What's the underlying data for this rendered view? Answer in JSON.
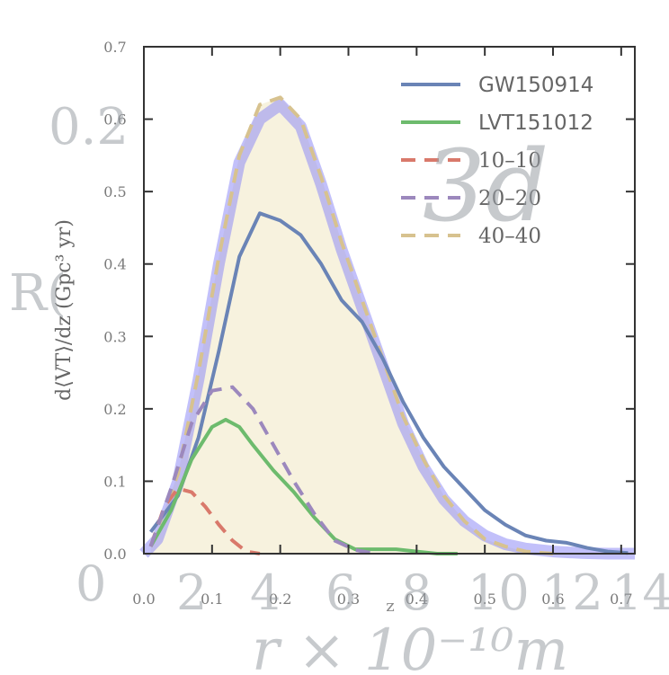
{
  "chart_data": {
    "type": "line",
    "ylabel": "d⟨VT⟩/dz (Gpc³ yr)",
    "xlabel": "z",
    "xlim": [
      0.0,
      0.72
    ],
    "ylim": [
      0.0,
      0.7
    ],
    "xticks": [
      "0.0",
      "0.1",
      "0.2",
      "0.3",
      "0.4",
      "0.5",
      "0.6",
      "0.7"
    ],
    "yticks": [
      "0.0",
      "0.1",
      "0.2",
      "0.3",
      "0.4",
      "0.5",
      "0.6",
      "0.7"
    ],
    "grid": false,
    "legend_position": "top-right",
    "background_fill": "#f7f2de",
    "series": [
      {
        "name": "GW150914",
        "style": "solid",
        "color": "#6a84b6",
        "x": [
          0.01,
          0.05,
          0.08,
          0.11,
          0.14,
          0.17,
          0.2,
          0.23,
          0.26,
          0.29,
          0.32,
          0.35,
          0.38,
          0.41,
          0.44,
          0.47,
          0.5,
          0.53,
          0.56,
          0.59,
          0.62,
          0.65,
          0.68,
          0.71
        ],
        "y": [
          0.03,
          0.08,
          0.16,
          0.28,
          0.41,
          0.47,
          0.46,
          0.44,
          0.4,
          0.35,
          0.32,
          0.27,
          0.21,
          0.16,
          0.12,
          0.09,
          0.06,
          0.04,
          0.025,
          0.018,
          0.015,
          0.008,
          0.003,
          0.001
        ]
      },
      {
        "name": "LVT151012",
        "style": "solid",
        "color": "#6dbb6d",
        "x": [
          0.01,
          0.04,
          0.07,
          0.1,
          0.12,
          0.14,
          0.16,
          0.19,
          0.22,
          0.25,
          0.28,
          0.31,
          0.34,
          0.37,
          0.4,
          0.43,
          0.46
        ],
        "y": [
          0.01,
          0.06,
          0.13,
          0.175,
          0.185,
          0.175,
          0.15,
          0.115,
          0.085,
          0.05,
          0.02,
          0.006,
          0.006,
          0.006,
          0.003,
          0.0,
          0.0
        ]
      },
      {
        "name": "10–10",
        "style": "dashed",
        "color": "#d9796b",
        "x": [
          0.01,
          0.03,
          0.05,
          0.07,
          0.09,
          0.11,
          0.13,
          0.15,
          0.17
        ],
        "y": [
          0.01,
          0.065,
          0.09,
          0.085,
          0.065,
          0.04,
          0.018,
          0.003,
          0.0
        ]
      },
      {
        "name": "20–20",
        "style": "dashed",
        "color": "#9c88bd",
        "x": [
          0.01,
          0.04,
          0.07,
          0.1,
          0.13,
          0.16,
          0.19,
          0.22,
          0.25,
          0.28,
          0.31,
          0.34
        ],
        "y": [
          0.01,
          0.09,
          0.18,
          0.225,
          0.23,
          0.2,
          0.15,
          0.1,
          0.055,
          0.018,
          0.005,
          0.0
        ]
      },
      {
        "name": "40–40",
        "style": "dashed",
        "color": "#d7c28f",
        "x": [
          0.01,
          0.05,
          0.08,
          0.11,
          0.14,
          0.17,
          0.2,
          0.23,
          0.26,
          0.29,
          0.32,
          0.35,
          0.38,
          0.41,
          0.44,
          0.47,
          0.5,
          0.53,
          0.56,
          0.6
        ],
        "y": [
          0.01,
          0.11,
          0.25,
          0.41,
          0.55,
          0.62,
          0.63,
          0.6,
          0.52,
          0.43,
          0.35,
          0.27,
          0.19,
          0.13,
          0.08,
          0.045,
          0.02,
          0.01,
          0.003,
          0.0
        ]
      },
      {
        "name": "",
        "style": "thick-glow",
        "color": "#8f8cf5",
        "x": [
          0.0,
          0.02,
          0.05,
          0.08,
          0.11,
          0.14,
          0.17,
          0.2,
          0.23,
          0.26,
          0.29,
          0.32,
          0.35,
          0.38,
          0.41,
          0.44,
          0.47,
          0.5,
          0.53,
          0.56,
          0.6,
          0.64,
          0.68,
          0.72
        ],
        "y": [
          0.0,
          0.02,
          0.1,
          0.24,
          0.4,
          0.54,
          0.6,
          0.62,
          0.59,
          0.51,
          0.42,
          0.34,
          0.26,
          0.18,
          0.12,
          0.075,
          0.045,
          0.025,
          0.013,
          0.007,
          0.003,
          0.001,
          0.0,
          0.0
        ]
      }
    ]
  },
  "watermark": {
    "numbers": [
      "0.2",
      "R(",
      "3d",
      "0",
      "2",
      "4",
      "6",
      "8",
      "10",
      "12",
      "14"
    ],
    "xlabel": "r × 10⁻¹⁰m"
  }
}
